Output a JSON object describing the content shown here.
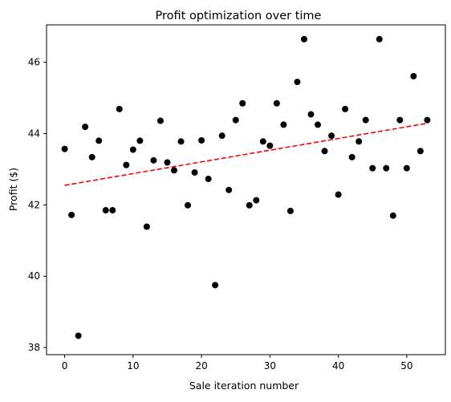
{
  "chart_data": {
    "type": "scatter",
    "title": "Profit optimization over time",
    "xlabel": "Sale iteration number",
    "ylabel": "Profit ($)",
    "xlim": [
      -2.65,
      55.65
    ],
    "ylim": [
      37.8,
      47.05
    ],
    "xticks": [
      0,
      10,
      20,
      30,
      40,
      50
    ],
    "yticks": [
      38,
      40,
      42,
      44,
      46
    ],
    "grid": false,
    "legend": "none",
    "series": [
      {
        "marker": "circle",
        "color": "#000000",
        "x": [
          0,
          1,
          2,
          3,
          4,
          5,
          6,
          7,
          8,
          9,
          10,
          11,
          12,
          13,
          14,
          15,
          16,
          17,
          18,
          19,
          20,
          21,
          22,
          23,
          24,
          25,
          26,
          27,
          28,
          29,
          30,
          31,
          32,
          33,
          34,
          35,
          36,
          37,
          38,
          39,
          40,
          41,
          42,
          43,
          44,
          45,
          46,
          47,
          48,
          49,
          50,
          51,
          52,
          53
        ],
        "y": [
          43.57,
          41.72,
          38.33,
          44.19,
          43.34,
          43.8,
          41.85,
          41.85,
          44.69,
          43.12,
          43.55,
          43.8,
          41.39,
          43.25,
          44.36,
          43.19,
          42.97,
          43.78,
          41.99,
          42.91,
          43.81,
          42.73,
          39.75,
          43.94,
          42.42,
          44.38,
          44.85,
          41.99,
          42.13,
          43.78,
          43.66,
          44.85,
          44.25,
          41.83,
          45.45,
          46.65,
          44.54,
          44.25,
          43.51,
          43.94,
          42.29,
          44.69,
          43.34,
          43.78,
          44.38,
          43.03,
          46.65,
          43.03,
          41.7,
          44.38,
          43.03,
          45.61,
          43.51,
          44.38
        ]
      }
    ],
    "trendline": {
      "style": "dashed",
      "color": "#ff0000",
      "x": [
        0,
        53
      ],
      "y": [
        42.55,
        44.29
      ]
    }
  }
}
